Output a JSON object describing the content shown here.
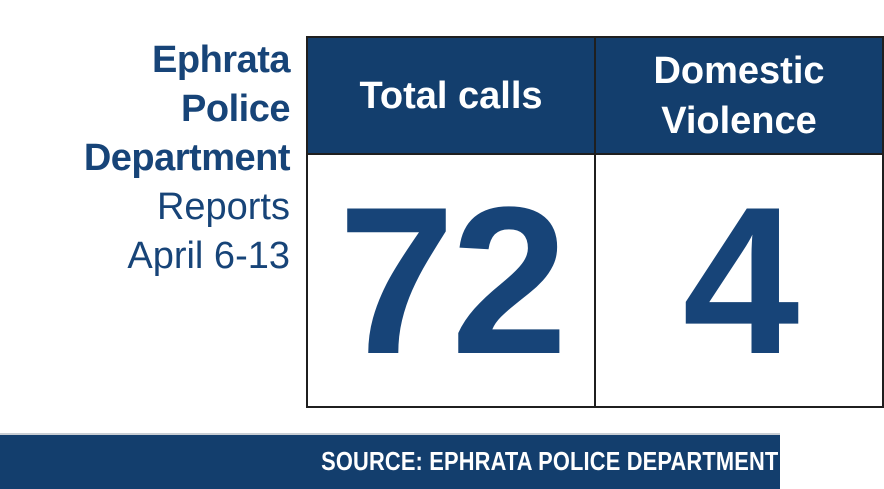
{
  "colors": {
    "background": "#ffffff",
    "navy_fill": "#133e6d",
    "navy_text": "#174478",
    "white_text": "#ffffff",
    "border_black": "#1f1f1f",
    "footer_top_rule": "#c9ced4"
  },
  "title": {
    "line1": "Ephrata",
    "line2": "Police",
    "line3": "Department",
    "line4": "Reports",
    "line5": "April 6-13"
  },
  "stats": {
    "columns": [
      {
        "header": "Total calls",
        "value": "72"
      },
      {
        "header": "Domestic Violence",
        "value": "4"
      }
    ]
  },
  "footer": {
    "source": "SOURCE: EPHRATA POLICE DEPARTMENT"
  },
  "chart_data": {
    "type": "table",
    "title": "Ephrata Police Department Reports April 6-13",
    "categories": [
      "Total calls",
      "Domestic Violence"
    ],
    "values": [
      72,
      4
    ],
    "source": "SOURCE: EPHRATA POLICE DEPARTMENT"
  }
}
